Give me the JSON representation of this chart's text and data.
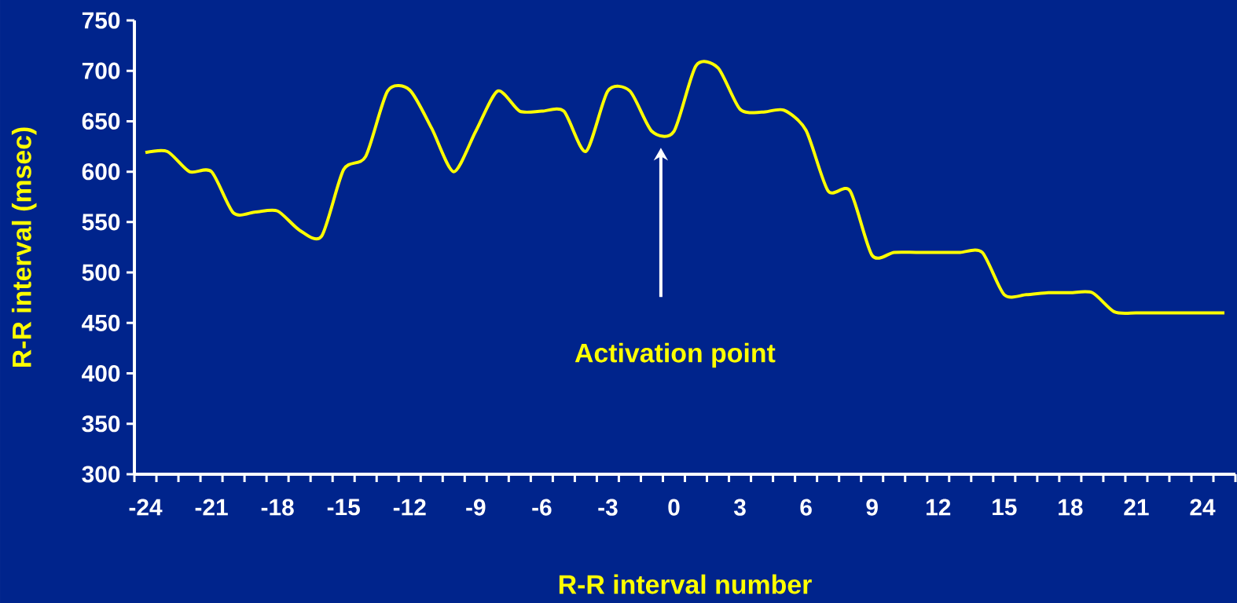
{
  "chart_data": {
    "type": "line",
    "xlabel": "R-R interval number",
    "ylabel": "R-R interval (msec)",
    "x": [
      -24,
      -23,
      -22,
      -21,
      -20,
      -19,
      -18,
      -17,
      -16,
      -15,
      -14,
      -13,
      -12,
      -11,
      -10,
      -9,
      -8,
      -7,
      -6,
      -5,
      -4,
      -3,
      -2,
      -1,
      0,
      1,
      2,
      3,
      4,
      5,
      6,
      7,
      8,
      9,
      10,
      11,
      12,
      13,
      14,
      15,
      16,
      17,
      18,
      19,
      20,
      21,
      22,
      23,
      24,
      25
    ],
    "series": [
      {
        "color": "#ffff00",
        "values": [
          619,
          620,
          600,
          600,
          559,
          560,
          561,
          542,
          536,
          602,
          615,
          680,
          681,
          643,
          600,
          640,
          680,
          660,
          660,
          660,
          620,
          680,
          680,
          640,
          640,
          705,
          703,
          662,
          659,
          661,
          641,
          581,
          581,
          517,
          520,
          520,
          520,
          520,
          520,
          478,
          478,
          480,
          480,
          480,
          461,
          460,
          460,
          460,
          460,
          460
        ]
      }
    ],
    "xlim": [
      -24.5,
      25.5
    ],
    "ylim": [
      300,
      750
    ],
    "xticks": [
      -24,
      -21,
      -18,
      -15,
      -12,
      -9,
      -6,
      -3,
      0,
      3,
      6,
      9,
      12,
      15,
      18,
      21,
      24,
      {
        "value": -24.5,
        "label": null
      },
      {
        "value": -23.5,
        "label": null
      },
      {
        "value": -22.5,
        "label": null
      },
      {
        "value": -21.5,
        "label": null
      },
      {
        "value": -20.5,
        "label": null
      },
      {
        "value": -19.5,
        "label": null
      },
      {
        "value": -18.5,
        "label": null
      },
      {
        "value": -17.5,
        "label": null
      },
      {
        "value": -16.5,
        "label": null
      },
      {
        "value": -15.5,
        "label": null
      },
      {
        "value": -14.5,
        "label": null
      },
      {
        "value": -13.5,
        "label": null
      },
      {
        "value": -12.5,
        "label": null
      },
      {
        "value": -11.5,
        "label": null
      },
      {
        "value": -10.5,
        "label": null
      },
      {
        "value": -9.5,
        "label": null
      },
      {
        "value": -8.5,
        "label": null
      },
      {
        "value": -7.5,
        "label": null
      },
      {
        "value": -6.5,
        "label": null
      },
      {
        "value": -5.5,
        "label": null
      },
      {
        "value": -4.5,
        "label": null
      },
      {
        "value": -3.5,
        "label": null
      },
      {
        "value": -2.5,
        "label": null
      },
      {
        "value": -1.5,
        "label": null
      },
      {
        "value": -0.5,
        "label": null
      },
      {
        "value": 0.5,
        "label": null
      },
      {
        "value": 1.5,
        "label": null
      },
      {
        "value": 2.5,
        "label": null
      },
      {
        "value": 3.5,
        "label": null
      },
      {
        "value": 4.5,
        "label": null
      },
      {
        "value": 5.5,
        "label": null
      },
      {
        "value": 6.5,
        "label": null
      },
      {
        "value": 7.5,
        "label": null
      },
      {
        "value": 8.5,
        "label": null
      },
      {
        "value": 9.5,
        "label": null
      },
      {
        "value": 10.5,
        "label": null
      },
      {
        "value": 11.5,
        "label": null
      },
      {
        "value": 12.5,
        "label": null
      },
      {
        "value": 13.5,
        "label": null
      },
      {
        "value": 14.5,
        "label": null
      },
      {
        "value": 15.5,
        "label": null
      },
      {
        "value": 16.5,
        "label": null
      },
      {
        "value": 17.5,
        "label": null
      },
      {
        "value": 18.5,
        "label": null
      },
      {
        "value": 19.5,
        "label": null
      },
      {
        "value": 20.5,
        "label": null
      },
      {
        "value": 21.5,
        "label": null
      },
      {
        "value": 22.5,
        "label": null
      },
      {
        "value": 23.5,
        "label": null
      },
      {
        "value": 24.5,
        "label": null
      },
      {
        "value": 25.5,
        "label": null
      }
    ],
    "yticks": [
      300,
      350,
      400,
      450,
      500,
      550,
      600,
      650,
      700,
      750
    ],
    "annotations": [
      "Activation point"
    ]
  }
}
